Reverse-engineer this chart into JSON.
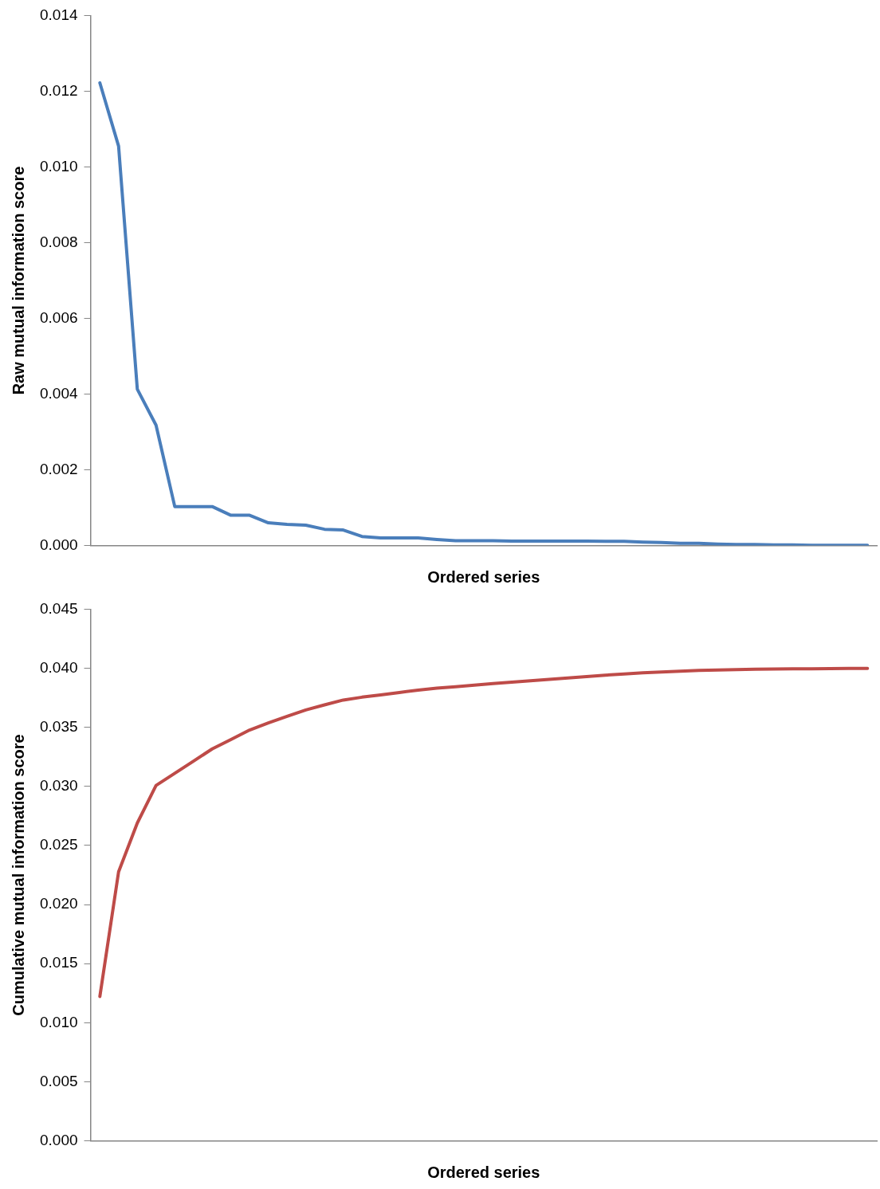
{
  "chart_data": [
    {
      "type": "line",
      "xlabel": "Ordered series",
      "ylabel": "Raw mutual information score",
      "categories": [
        null,
        null,
        null,
        null,
        null,
        null,
        null,
        null,
        null,
        null,
        null,
        null,
        null,
        null,
        null,
        null,
        null,
        null,
        null,
        null,
        null,
        null,
        null,
        null,
        null,
        null,
        null,
        null,
        null,
        null,
        null,
        null,
        null,
        null,
        null,
        null,
        null,
        null,
        null,
        null,
        null,
        null
      ],
      "series": [
        {
          "color": "#4a7ebb",
          "values": [
            0.01222,
            0.01055,
            0.00413,
            0.00318,
            0.00103,
            0.00103,
            0.00103,
            0.0008,
            0.0008,
            0.0006,
            0.00056,
            0.00054,
            0.00043,
            0.00041,
            0.00024,
            0.0002,
            0.0002,
            0.0002,
            0.00016,
            0.00013,
            0.00013,
            0.00013,
            0.00012,
            0.00012,
            0.00012,
            0.00012,
            0.00012,
            0.00011,
            0.00011,
            9e-05,
            8e-05,
            6e-05,
            6e-05,
            4e-05,
            3e-05,
            3e-05,
            2e-05,
            2e-05,
            1e-05,
            1e-05,
            1e-05,
            1e-05
          ]
        }
      ],
      "ylim": [
        0,
        0.014
      ],
      "yticks": [
        {
          "value": 0,
          "label": "0.000"
        },
        {
          "value": 0.002,
          "label": "0.002"
        },
        {
          "value": 0.004,
          "label": "0.004"
        },
        {
          "value": 0.006,
          "label": "0.006"
        },
        {
          "value": 0.008,
          "label": "0.008"
        },
        {
          "value": 0.01,
          "label": "0.010"
        },
        {
          "value": 0.012,
          "label": "0.012"
        },
        {
          "value": 0.014,
          "label": "0.014"
        }
      ],
      "grid": false,
      "legend": false,
      "marker": "none",
      "line_style": "solid"
    },
    {
      "type": "line",
      "xlabel": "Ordered series",
      "ylabel": "Cumulative mutual information score",
      "categories": [
        null,
        null,
        null,
        null,
        null,
        null,
        null,
        null,
        null,
        null,
        null,
        null,
        null,
        null,
        null,
        null,
        null,
        null,
        null,
        null,
        null,
        null,
        null,
        null,
        null,
        null,
        null,
        null,
        null,
        null,
        null,
        null,
        null,
        null,
        null,
        null,
        null,
        null,
        null,
        null,
        null,
        null
      ],
      "series": [
        {
          "color": "#be4b48",
          "values": [
            0.01222,
            0.02277,
            0.0269,
            0.03008,
            0.03111,
            0.03214,
            0.03317,
            0.03397,
            0.03477,
            0.03537,
            0.03593,
            0.03647,
            0.0369,
            0.03731,
            0.03755,
            0.03775,
            0.03795,
            0.03815,
            0.03831,
            0.03844,
            0.03857,
            0.0387,
            0.03882,
            0.03894,
            0.03906,
            0.03918,
            0.0393,
            0.03941,
            0.03952,
            0.03961,
            0.03969,
            0.03975,
            0.03981,
            0.03985,
            0.03988,
            0.03991,
            0.03993,
            0.03995,
            0.03996,
            0.03997,
            0.03998,
            0.03999
          ]
        }
      ],
      "ylim": [
        0,
        0.045
      ],
      "yticks": [
        {
          "value": 0,
          "label": "0.000"
        },
        {
          "value": 0.005,
          "label": "0.005"
        },
        {
          "value": 0.01,
          "label": "0.010"
        },
        {
          "value": 0.015,
          "label": "0.015"
        },
        {
          "value": 0.02,
          "label": "0.020"
        },
        {
          "value": 0.025,
          "label": "0.025"
        },
        {
          "value": 0.03,
          "label": "0.030"
        },
        {
          "value": 0.035,
          "label": "0.035"
        },
        {
          "value": 0.04,
          "label": "0.040"
        },
        {
          "value": 0.045,
          "label": "0.045"
        }
      ],
      "grid": false,
      "legend": false,
      "marker": "none",
      "line_style": "solid"
    }
  ]
}
